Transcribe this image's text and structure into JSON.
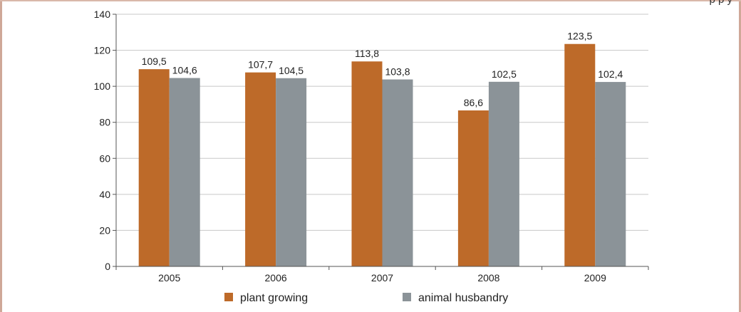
{
  "top_cut_text": "p     p       y",
  "colors": {
    "plant": "#bd6a29",
    "animal": "#8b9398",
    "grid": "#c8c8c8",
    "axis": "#555555",
    "frame": "#cfa898"
  },
  "chart_data": {
    "type": "bar",
    "title": "",
    "xlabel": "",
    "ylabel": "",
    "ylim": [
      0,
      140
    ],
    "yticks": [
      0,
      20,
      40,
      60,
      80,
      100,
      120,
      140
    ],
    "grid": true,
    "legend_position": "bottom",
    "categories": [
      "2005",
      "2006",
      "2007",
      "2008",
      "2009"
    ],
    "series": [
      {
        "name": "plant growing",
        "color": "#bd6a29",
        "values": [
          109.5,
          107.7,
          113.8,
          86.6,
          123.5
        ],
        "labels": [
          "109,5",
          "107,7",
          "113,8",
          "86,6",
          "123,5"
        ]
      },
      {
        "name": "animal husbandry",
        "color": "#8b9398",
        "values": [
          104.6,
          104.5,
          103.8,
          102.5,
          102.4
        ],
        "labels": [
          "104,6",
          "104,5",
          "103,8",
          "102,5",
          "102,4"
        ]
      }
    ]
  }
}
